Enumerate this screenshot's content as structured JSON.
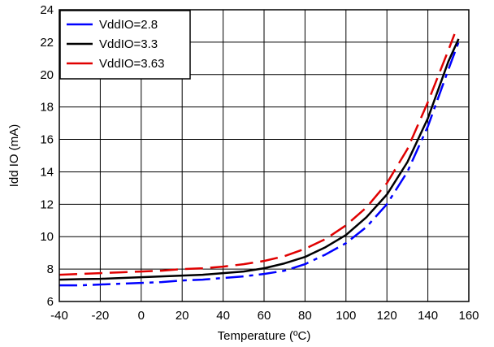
{
  "chart_data": {
    "type": "line",
    "xlabel": "Temperature (ºC)",
    "ylabel": "Idd IO (mA)",
    "xlim": [
      -40,
      160
    ],
    "ylim": [
      6,
      24
    ],
    "xticks": [
      -40,
      -20,
      0,
      20,
      40,
      60,
      80,
      100,
      120,
      140,
      160
    ],
    "yticks": [
      6,
      8,
      10,
      12,
      14,
      16,
      18,
      20,
      22,
      24
    ],
    "xtick_labels": [
      "-40",
      "-20",
      "0",
      "20",
      "40",
      "60",
      "80",
      "100",
      "120",
      "140",
      "160"
    ],
    "ytick_labels": [
      "6",
      "8",
      "10",
      "12",
      "14",
      "16",
      "18",
      "20",
      "22",
      "24"
    ],
    "grid": true,
    "legend": {
      "placement": "top-left"
    },
    "series": [
      {
        "name": "VddIO=2.8",
        "color": "#0000ff",
        "dash": "dashdot",
        "x": [
          -40,
          -30,
          -20,
          -10,
          0,
          10,
          20,
          30,
          40,
          50,
          60,
          70,
          80,
          90,
          100,
          110,
          120,
          130,
          140,
          150,
          155
        ],
        "y": [
          7.0,
          7.0,
          7.05,
          7.1,
          7.15,
          7.2,
          7.3,
          7.35,
          7.45,
          7.55,
          7.7,
          7.9,
          8.3,
          8.9,
          9.6,
          10.6,
          12.0,
          14.0,
          16.8,
          20.3,
          22.0
        ]
      },
      {
        "name": "VddIO=3.3",
        "color": "#000000",
        "dash": "solid",
        "x": [
          -40,
          -30,
          -20,
          -10,
          0,
          10,
          20,
          30,
          40,
          50,
          60,
          70,
          80,
          90,
          100,
          110,
          120,
          130,
          140,
          150,
          155
        ],
        "y": [
          7.35,
          7.38,
          7.4,
          7.45,
          7.5,
          7.55,
          7.6,
          7.65,
          7.75,
          7.85,
          8.05,
          8.35,
          8.75,
          9.35,
          10.1,
          11.2,
          12.6,
          14.6,
          17.3,
          20.8,
          22.2
        ]
      },
      {
        "name": "VddIO=3.63",
        "color": "#e00000",
        "dash": "dash",
        "x": [
          -40,
          -30,
          -20,
          -10,
          0,
          10,
          20,
          30,
          40,
          50,
          60,
          70,
          80,
          90,
          100,
          110,
          120,
          130,
          140,
          150,
          153
        ],
        "y": [
          7.65,
          7.7,
          7.75,
          7.8,
          7.85,
          7.9,
          8.0,
          8.05,
          8.15,
          8.3,
          8.5,
          8.8,
          9.25,
          9.85,
          10.7,
          11.8,
          13.3,
          15.4,
          18.3,
          21.5,
          22.5
        ]
      }
    ]
  }
}
